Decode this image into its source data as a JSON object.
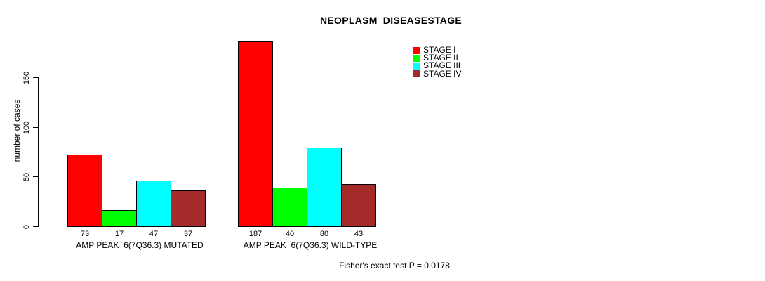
{
  "chart_data": {
    "type": "bar",
    "title": "NEOPLASM_DISEASESTAGE",
    "ylabel": "number of cases",
    "ylim": [
      0,
      190
    ],
    "yticks": [
      0,
      50,
      100,
      150
    ],
    "grid": false,
    "legend_position": "top-right",
    "categories": [
      "AMP PEAK  6(7Q36.3) MUTATED",
      "AMP PEAK  6(7Q36.3) WILD-TYPE"
    ],
    "series": [
      {
        "name": "STAGE I",
        "color": "#ff0000",
        "values": [
          73,
          187
        ]
      },
      {
        "name": "STAGE II",
        "color": "#00ff00",
        "values": [
          17,
          40
        ]
      },
      {
        "name": "STAGE III",
        "color": "#00ffff",
        "values": [
          47,
          80
        ]
      },
      {
        "name": "STAGE IV",
        "color": "#a52a2a",
        "values": [
          37,
          43
        ]
      }
    ],
    "bar_value_labels_shown": true,
    "annotation": "Fisher's exact test P = 0.0178",
    "axis_color": "#000000",
    "text_color": "#000000",
    "background_color": "#ffffff"
  }
}
